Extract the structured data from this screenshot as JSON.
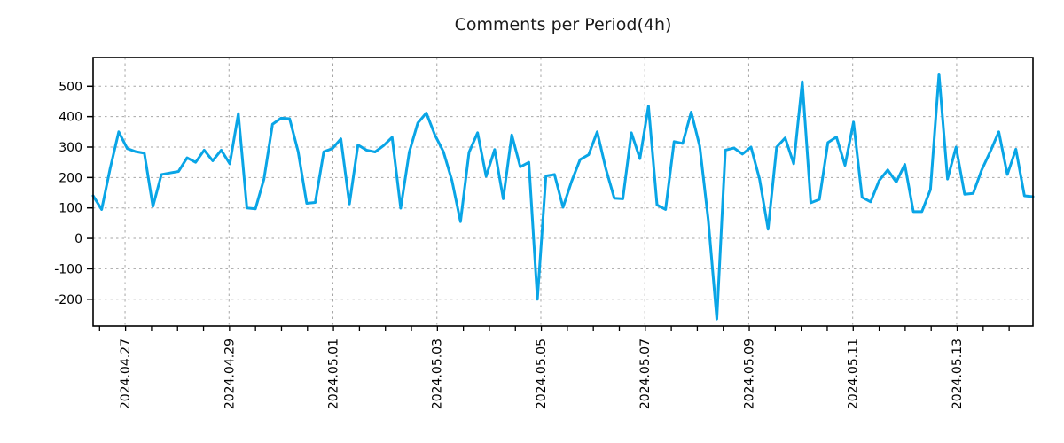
{
  "page": {
    "background": "#ffffff"
  },
  "chart_data": {
    "type": "line",
    "title": "Comments per Period(4h)",
    "series_name": "comments-per-4h-period",
    "period_hours": 4,
    "legend": "none",
    "grid": "dashed",
    "line_color": "#09a5e6",
    "grid_color": "#a6a6a6",
    "axis_color": "#000000",
    "ylim": [
      -288,
      594
    ],
    "y_tick_values": [
      -200,
      -100,
      0,
      100,
      200,
      300,
      400,
      500
    ],
    "x_tick_labels": [
      "2024.04.27",
      "2024.04.29",
      "2024.05.01",
      "2024.05.03",
      "2024.05.05",
      "2024.05.07",
      "2024.05.09",
      "2024.05.11",
      "2024.05.13"
    ],
    "x_first_label_fraction": 0.034,
    "x_label_step_fraction": 0.1106,
    "x_minor_tick_first_fraction": 0.0069,
    "x_minor_tick_step_fraction": 0.02765,
    "values": [
      140,
      95,
      230,
      350,
      295,
      285,
      280,
      105,
      210,
      215,
      220,
      265,
      250,
      290,
      255,
      290,
      245,
      410,
      100,
      97,
      195,
      375,
      395,
      393,
      285,
      115,
      118,
      285,
      295,
      327,
      113,
      307,
      290,
      284,
      305,
      332,
      99,
      283,
      379,
      412,
      340,
      285,
      190,
      55,
      283,
      347,
      204,
      292,
      130,
      340,
      235,
      250,
      -200,
      205,
      210,
      102,
      187,
      259,
      275,
      350,
      230,
      132,
      130,
      347,
      262,
      435,
      110,
      95,
      318,
      312,
      415,
      303,
      60,
      -265,
      290,
      297,
      277,
      300,
      195,
      30,
      300,
      330,
      245,
      515,
      117,
      128,
      315,
      333,
      240,
      382,
      135,
      120,
      190,
      225,
      185,
      243,
      88,
      88,
      160,
      540,
      195,
      300,
      145,
      148,
      225,
      285,
      350,
      210,
      293,
      140,
      137
    ]
  }
}
